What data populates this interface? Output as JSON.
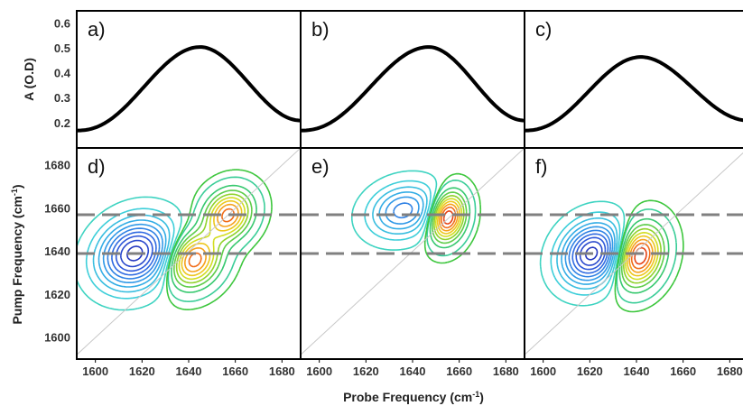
{
  "figure": {
    "xlabel": "Probe Frequency (cm",
    "xlabel_sup": "-1",
    "xlabel_end": ")",
    "ylabel_top": "A (O.D)",
    "ylabel_bottom": "Pump Frequency (cm",
    "ylabel_bottom_sup": "-1",
    "ylabel_bottom_end": ")"
  },
  "chart_data": [
    {
      "type": "line",
      "panel": "a)",
      "xlim": [
        1592,
        1688
      ],
      "ylim": [
        0.1,
        0.65
      ],
      "yticks": [
        "0.6",
        "0.5",
        "0.4",
        "0.3",
        "0.2"
      ],
      "ytick_values": [
        0.6,
        0.5,
        0.4,
        0.3,
        0.2
      ],
      "peak_x": 1645,
      "peak_y": 0.505,
      "start_y": 0.17,
      "end_y": 0.21,
      "x": [
        1592,
        1600,
        1610,
        1620,
        1630,
        1640,
        1645,
        1650,
        1660,
        1670,
        1680,
        1688
      ],
      "y": [
        0.17,
        0.2,
        0.26,
        0.35,
        0.44,
        0.5,
        0.505,
        0.5,
        0.44,
        0.35,
        0.26,
        0.21
      ],
      "color": "#000000"
    },
    {
      "type": "line",
      "panel": "b)",
      "xlim": [
        1592,
        1688
      ],
      "ylim": [
        0.1,
        0.65
      ],
      "peak_x": 1647,
      "peak_y": 0.505,
      "start_y": 0.17,
      "end_y": 0.21,
      "x": [
        1592,
        1600,
        1610,
        1620,
        1630,
        1640,
        1647,
        1655,
        1665,
        1675,
        1688
      ],
      "y": [
        0.17,
        0.2,
        0.26,
        0.34,
        0.43,
        0.49,
        0.505,
        0.49,
        0.42,
        0.32,
        0.21
      ],
      "color": "#000000"
    },
    {
      "type": "line",
      "panel": "c)",
      "xlim": [
        1592,
        1688
      ],
      "ylim": [
        0.1,
        0.65
      ],
      "peak_x": 1642,
      "peak_y": 0.465,
      "start_y": 0.17,
      "end_y": 0.21,
      "x": [
        1592,
        1600,
        1610,
        1620,
        1630,
        1642,
        1650,
        1660,
        1670,
        1680,
        1688
      ],
      "y": [
        0.17,
        0.2,
        0.26,
        0.34,
        0.42,
        0.465,
        0.45,
        0.39,
        0.31,
        0.24,
        0.21
      ],
      "color": "#000000"
    },
    {
      "type": "heatmap",
      "subtype": "contour",
      "panel": "d)",
      "xlim": [
        1592,
        1688
      ],
      "ylim": [
        1590,
        1688
      ],
      "xticks": [
        "1600",
        "1620",
        "1640",
        "1660",
        "1680"
      ],
      "xtick_values": [
        1600,
        1620,
        1640,
        1660,
        1680
      ],
      "yticks": [
        "1680",
        "1660",
        "1640",
        "1620",
        "1600"
      ],
      "ytick_values": [
        1680,
        1660,
        1640,
        1620,
        1600
      ],
      "dashed_lines_y": [
        1657,
        1639
      ],
      "peaks": [
        {
          "sign": "negative",
          "x": 1617,
          "y": 1639,
          "sx": 13,
          "sy": 13,
          "amp": 1.0
        },
        {
          "sign": "positive",
          "x": 1642,
          "y": 1636,
          "sx": 9,
          "sy": 10,
          "amp": 0.85
        },
        {
          "sign": "positive",
          "x": 1657,
          "y": 1657,
          "sx": 8,
          "sy": 9,
          "amp": 0.8
        }
      ]
    },
    {
      "type": "heatmap",
      "subtype": "contour",
      "panel": "e)",
      "xlim": [
        1592,
        1688
      ],
      "ylim": [
        1590,
        1688
      ],
      "xticks": [
        "1600",
        "1620",
        "1640",
        "1660",
        "1680"
      ],
      "xtick_values": [
        1600,
        1620,
        1640,
        1660,
        1680
      ],
      "dashed_lines_y": [
        1657,
        1639
      ],
      "peaks": [
        {
          "sign": "negative",
          "x": 1636,
          "y": 1659,
          "sx": 12,
          "sy": 10,
          "amp": 0.6
        },
        {
          "sign": "positive",
          "x": 1655,
          "y": 1656,
          "sx": 6,
          "sy": 9,
          "amp": 1.0
        }
      ]
    },
    {
      "type": "heatmap",
      "subtype": "contour",
      "panel": "f)",
      "xlim": [
        1592,
        1688
      ],
      "ylim": [
        1590,
        1688
      ],
      "xticks": [
        "1600",
        "1620",
        "1640",
        "1660",
        "1680"
      ],
      "xtick_values": [
        1600,
        1620,
        1640,
        1660,
        1680
      ],
      "dashed_lines_y": [
        1657,
        1639
      ],
      "peaks": [
        {
          "sign": "negative",
          "x": 1621,
          "y": 1639,
          "sx": 11,
          "sy": 12,
          "amp": 1.0
        },
        {
          "sign": "positive",
          "x": 1641,
          "y": 1638,
          "sx": 8,
          "sy": 11,
          "amp": 1.0
        }
      ]
    }
  ]
}
